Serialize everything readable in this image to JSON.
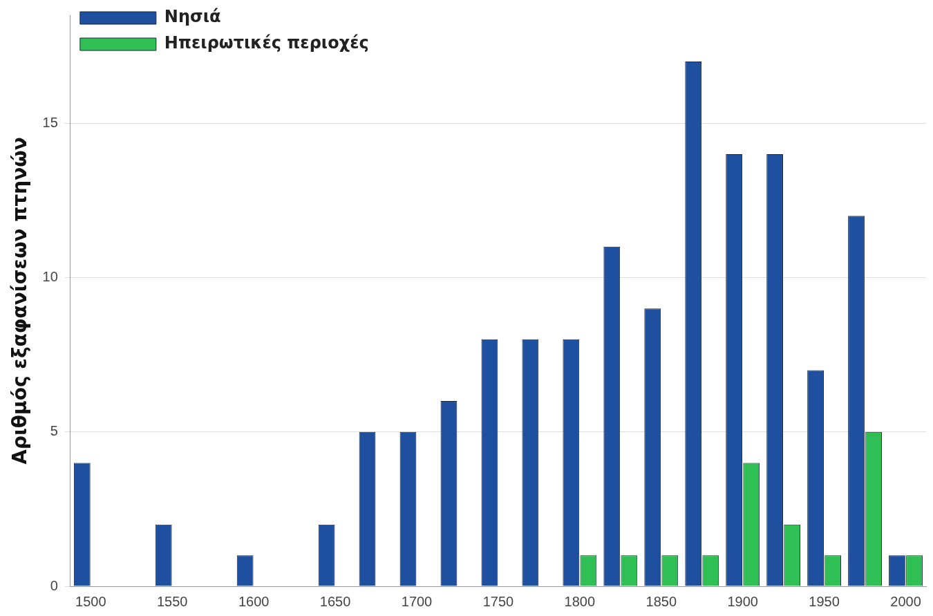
{
  "chart_data": {
    "type": "bar",
    "ylabel": "Αριθμός εξαφανίσεων πτηνών",
    "categories": [
      "1500",
      null,
      "1550",
      null,
      "1600",
      null,
      "1650",
      null,
      "1700",
      null,
      "1750",
      null,
      "1800",
      null,
      "1850",
      null,
      "1900",
      null,
      "1950",
      null,
      "2000"
    ],
    "series": [
      {
        "name": "Νησιά",
        "color": "#1f4f9f",
        "values": [
          4,
          0,
          2,
          0,
          1,
          0,
          2,
          5,
          5,
          6,
          8,
          8,
          8,
          11,
          9,
          17,
          14,
          14,
          7,
          12,
          1
        ]
      },
      {
        "name": "Ηπειρωτικές περιοχές",
        "color": "#2fbf55",
        "values": [
          0,
          0,
          0,
          0,
          0,
          0,
          0,
          0,
          0,
          0,
          0,
          0,
          1,
          1,
          1,
          1,
          4,
          2,
          1,
          5,
          1
        ]
      }
    ],
    "ylim": [
      0,
      18.5
    ],
    "yticks": [
      0,
      5,
      10,
      15
    ],
    "grid": "y",
    "legend": "top left"
  }
}
